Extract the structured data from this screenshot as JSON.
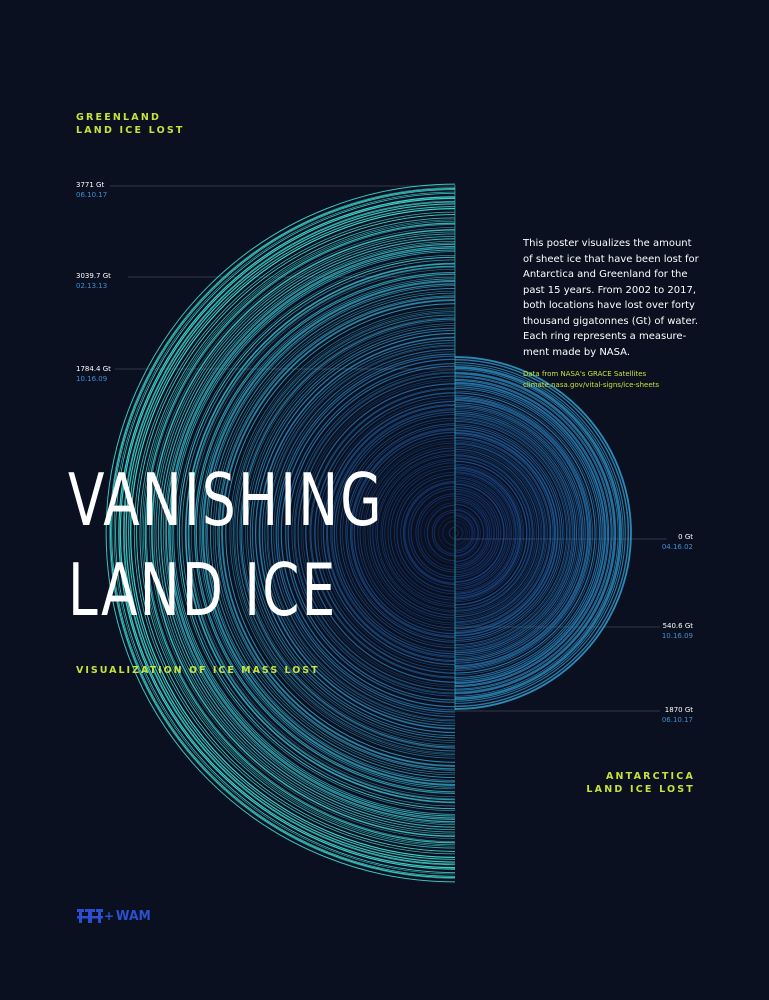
{
  "greenland_header": {
    "line1": "GREENLAND",
    "line2": "LAND ICE LOST"
  },
  "antarctica_header": {
    "line1": "ANTARCTICA",
    "line2": "LAND ICE LOST"
  },
  "title": {
    "line1": "VANISHING",
    "line2": "LAND ICE"
  },
  "subtitle": "VISUALIZATION OF ICE MASS LOST",
  "description": {
    "lines": [
      "This poster visualizes the amount",
      "of sheet ice that have been lost for",
      "Antarctica and Greenland for the",
      "past 15 years. From 2002 to 2017,",
      "both locations have lost over forty",
      "thousand gigatonnes (Gt) of water.",
      "Each ring represents a measure-",
      "ment made by NASA."
    ]
  },
  "source": {
    "line1": "Data from NASA's GRACE Satellites",
    "line2": "climate.nasa.gov/vital-signs/ice-sheets"
  },
  "greenland_annotations": [
    {
      "value": "3771 Gt",
      "date": "06.10.17"
    },
    {
      "value": "3039.7 Gt",
      "date": "02.13.13"
    },
    {
      "value": "1784.4 Gt",
      "date": "10.16.09"
    }
  ],
  "antarctica_annotations": [
    {
      "value": "0 Gt",
      "date": "04.16.02"
    },
    {
      "value": "540.6 Gt",
      "date": "10.16.09"
    },
    {
      "value": "1870 Gt",
      "date": "06.10.17"
    }
  ],
  "logo": {
    "plus": "+",
    "brand": "WAM"
  },
  "colors": {
    "background": "#0a1020",
    "accent": "#c7e23a",
    "ring_inner": "#1f52c4",
    "ring_outer": "#3fd6d0",
    "date": "#3f8fd0",
    "logo": "#2b4fd0"
  }
}
